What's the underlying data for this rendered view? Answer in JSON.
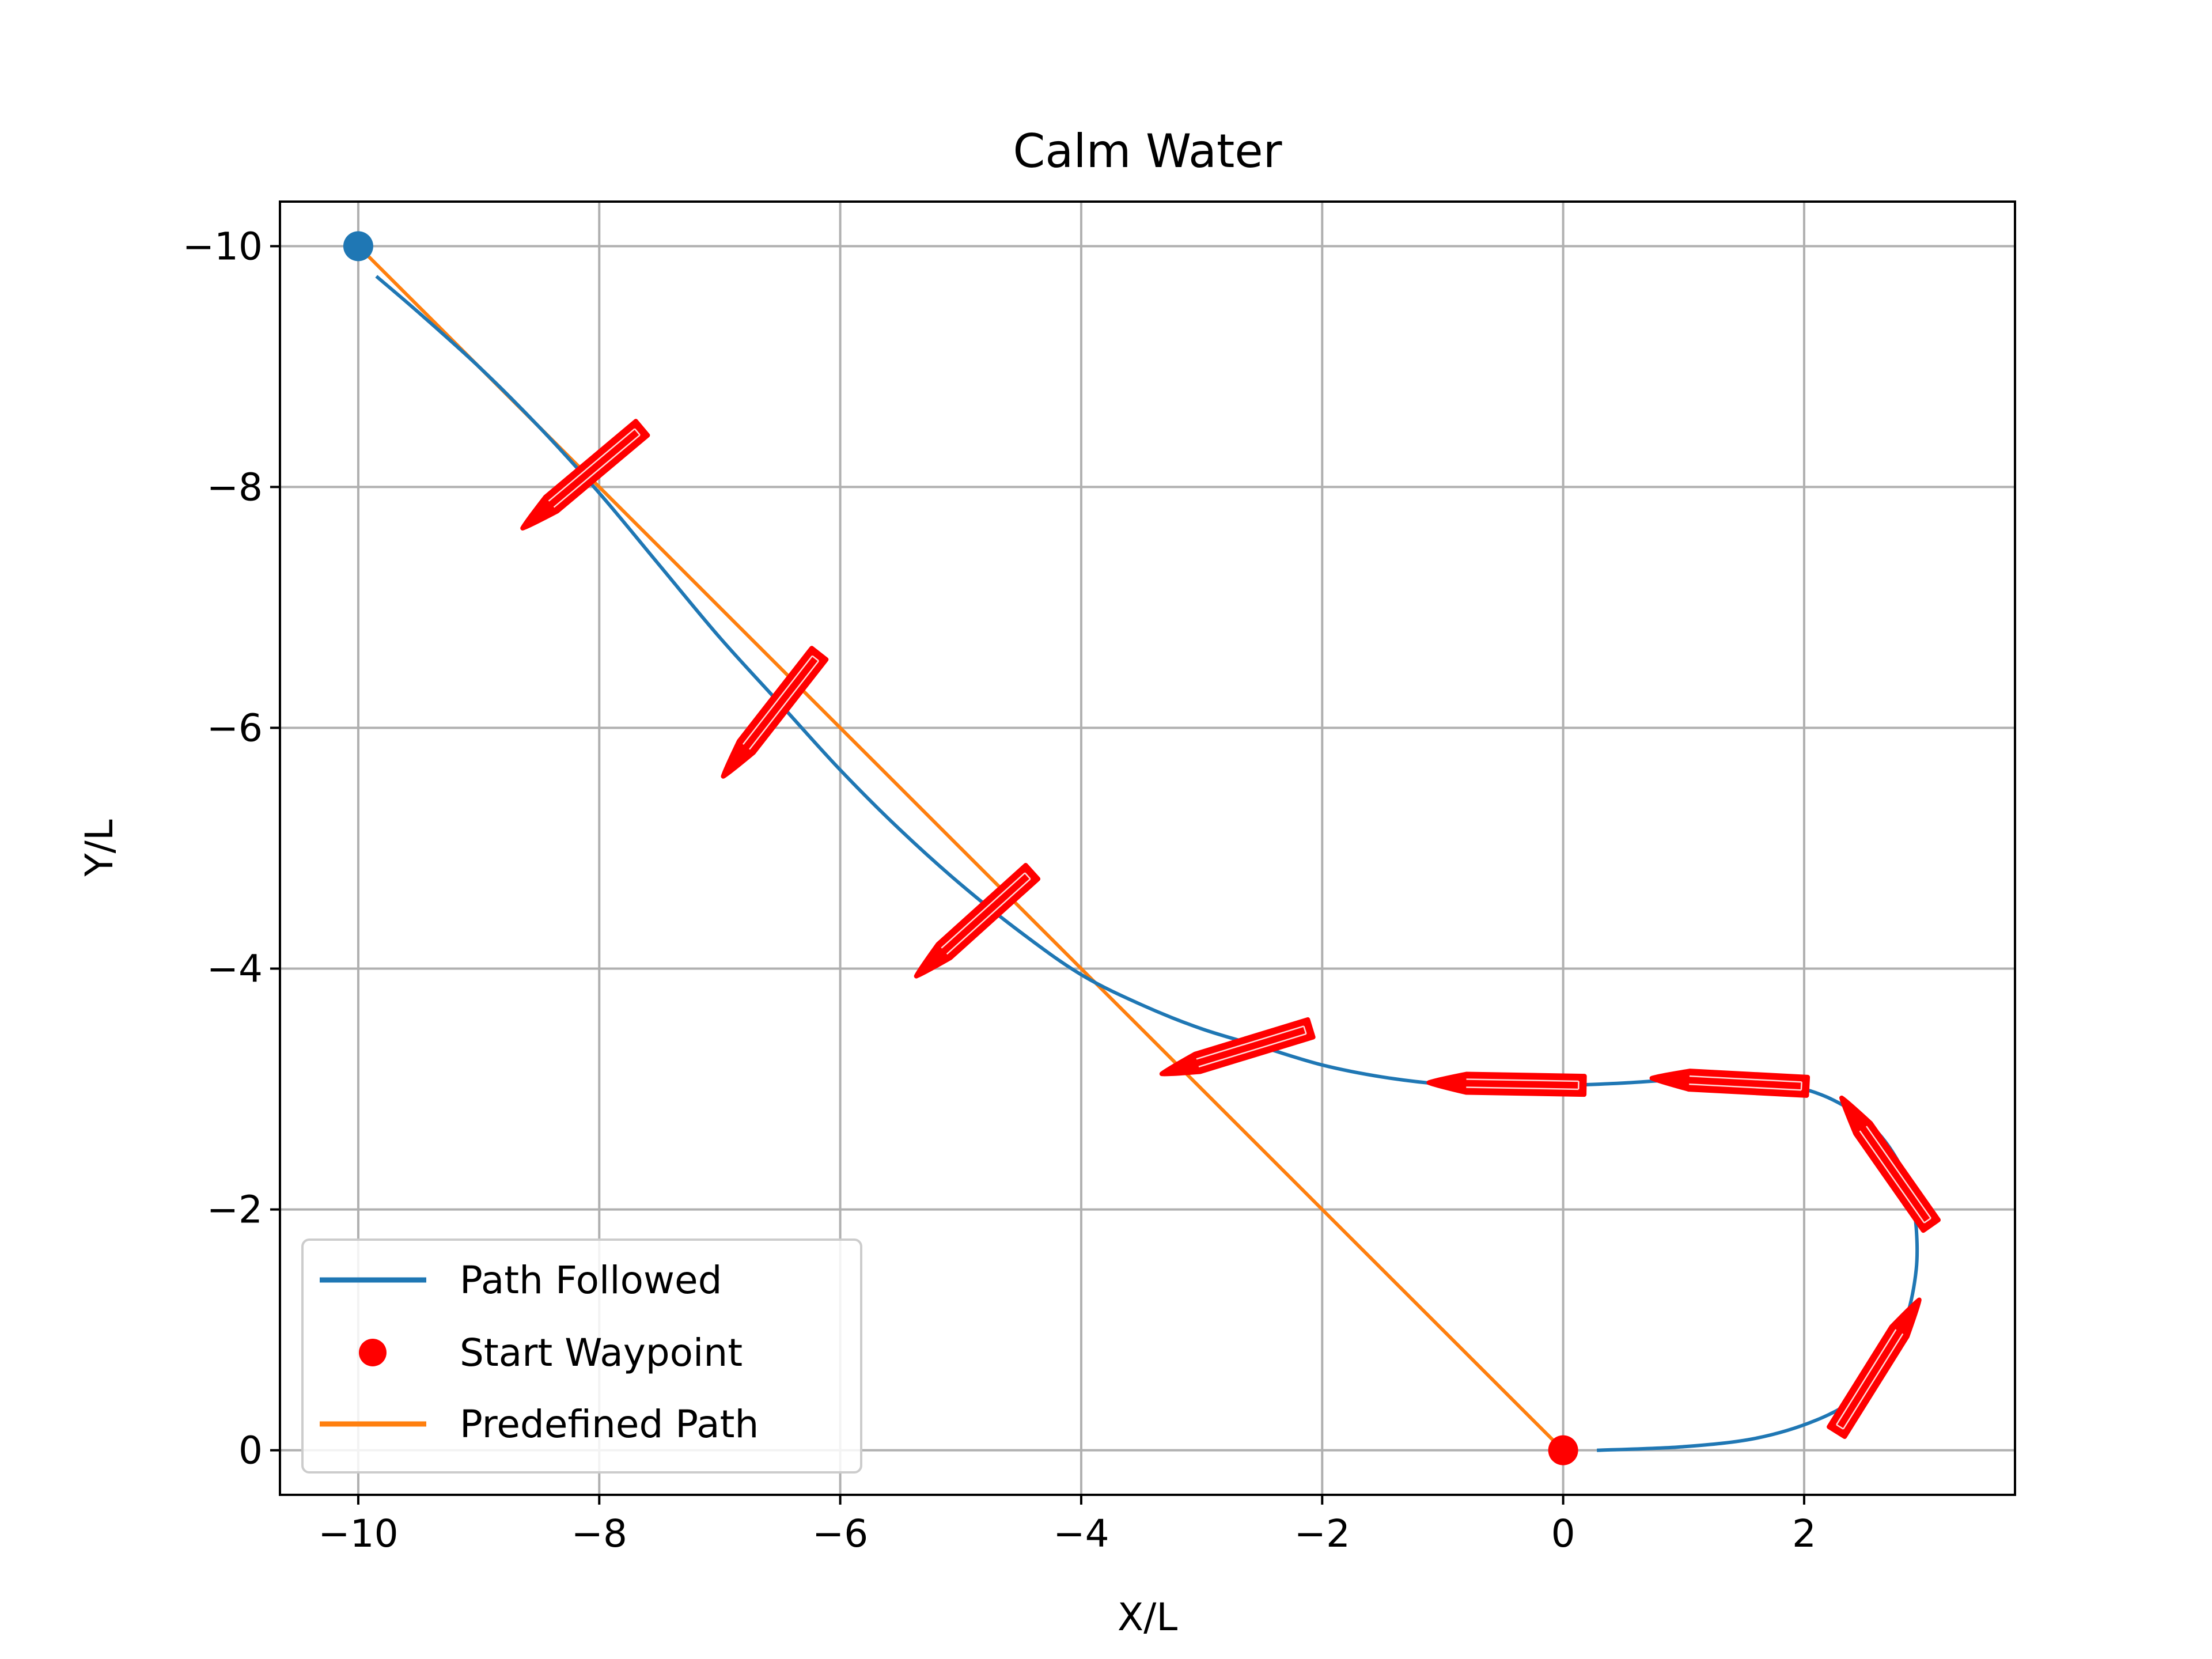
{
  "chart_data": {
    "type": "line",
    "title": "Calm Water",
    "xlabel": "X/L",
    "ylabel": "Y/L",
    "xlim": [
      -10.65,
      3.75
    ],
    "ylim": [
      0.37,
      -10.37
    ],
    "y_axis_inverted": true,
    "grid": true,
    "legend_position": "lower-left",
    "x_ticks": [
      -10,
      -8,
      -6,
      -4,
      -2,
      0,
      2
    ],
    "x_tick_labels": [
      "−10",
      "−8",
      "−6",
      "−4",
      "−2",
      "0",
      "2"
    ],
    "y_ticks": [
      -10,
      -8,
      -6,
      -4,
      -2,
      0
    ],
    "y_tick_labels": [
      "−10",
      "−8",
      "−6",
      "−4",
      "−2",
      "0"
    ],
    "series": [
      {
        "name": "Path Followed",
        "kind": "line",
        "color": "#1f77b4",
        "x": [
          0.28,
          1.0,
          1.6,
          2.1,
          2.45,
          2.7,
          2.85,
          2.93,
          2.93,
          2.88,
          2.78,
          2.6,
          2.35,
          2.0,
          1.5,
          1.0,
          0.5,
          0.0,
          -0.5,
          -1.0,
          -1.5,
          -2.0,
          -2.5,
          -3.0,
          -3.5,
          -4.0,
          -4.5,
          -5.0,
          -5.5,
          -6.0,
          -6.5,
          -7.0,
          -7.5,
          -8.0,
          -8.5,
          -9.0,
          -9.5,
          -9.85
        ],
        "y": [
          0.0,
          -0.03,
          -0.1,
          -0.25,
          -0.45,
          -0.75,
          -1.1,
          -1.5,
          -1.85,
          -2.15,
          -2.4,
          -2.65,
          -2.85,
          -3.0,
          -3.08,
          -3.08,
          -3.05,
          -3.03,
          -3.02,
          -3.04,
          -3.1,
          -3.2,
          -3.35,
          -3.5,
          -3.7,
          -3.95,
          -4.3,
          -4.7,
          -5.15,
          -5.65,
          -6.2,
          -6.75,
          -7.35,
          -7.95,
          -8.5,
          -9.0,
          -9.45,
          -9.75
        ]
      },
      {
        "name": "Start Waypoint",
        "kind": "marker",
        "color": "#ff0000",
        "x": [
          0
        ],
        "y": [
          0
        ]
      },
      {
        "name": "Predefined Path",
        "kind": "line",
        "color": "#ff7f0e",
        "x": [
          0,
          -10
        ],
        "y": [
          0,
          -10
        ]
      }
    ],
    "end_waypoint": {
      "x": -10,
      "y": -10,
      "color": "#1f77b4"
    },
    "vessel_markers": {
      "color": "#ff0000",
      "points": [
        {
          "x": 2.55,
          "y": -0.6,
          "heading_deg": -58
        },
        {
          "x": 2.75,
          "y": -2.3,
          "heading_deg": -125
        },
        {
          "x": 1.5,
          "y": -3.05,
          "heading_deg": -177
        },
        {
          "x": -0.35,
          "y": -3.04,
          "heading_deg": -179
        },
        {
          "x": -2.6,
          "y": -3.35,
          "heading_deg": 163
        },
        {
          "x": -4.8,
          "y": -4.45,
          "heading_deg": 138
        },
        {
          "x": -6.5,
          "y": -6.2,
          "heading_deg": 128
        },
        {
          "x": -8.05,
          "y": -8.15,
          "heading_deg": 140
        }
      ]
    }
  }
}
